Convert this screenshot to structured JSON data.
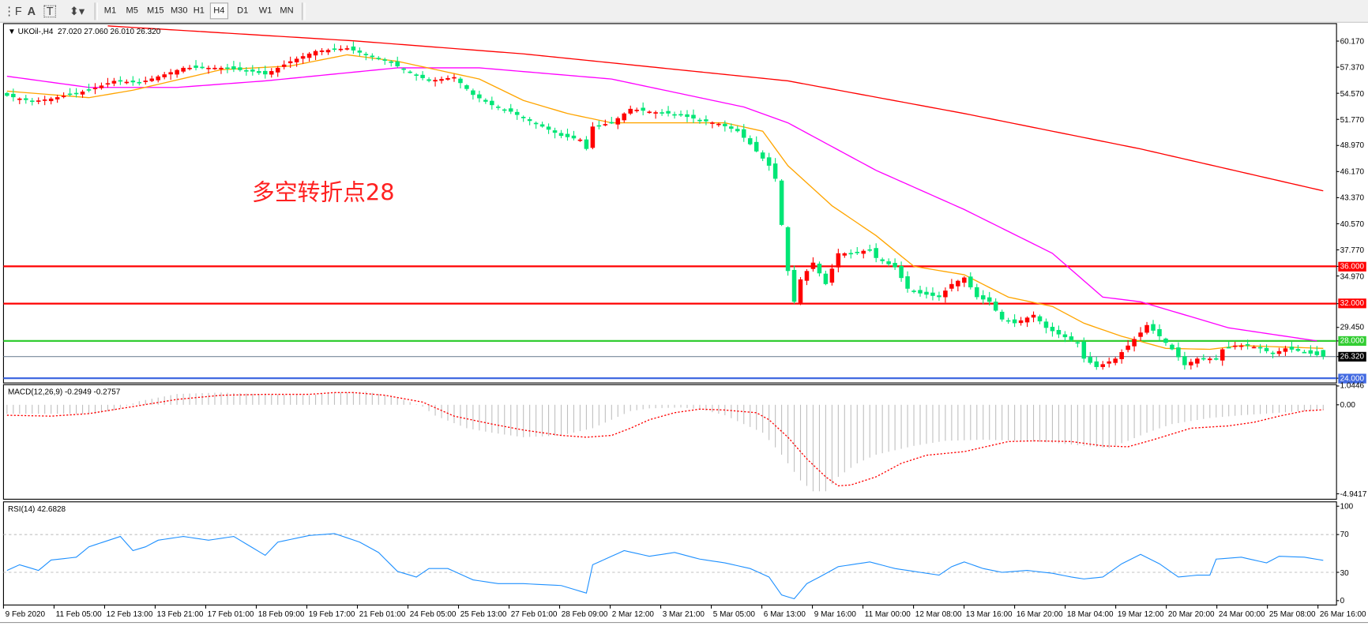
{
  "toolbar": {
    "tools": [
      {
        "name": "period-separator-icon",
        "glyph": "⋮F"
      },
      {
        "name": "text-icon",
        "glyph": "A"
      },
      {
        "name": "text-label-icon",
        "glyph": "T"
      },
      {
        "name": "arrows-icon",
        "glyph": "⬍▾"
      }
    ],
    "timeframes": [
      "M1",
      "M5",
      "M15",
      "M30",
      "H1",
      "H4",
      "D1",
      "W1",
      "MN"
    ],
    "active_timeframe": "H4"
  },
  "chart": {
    "header": "UKOil-,H4  27.020 27.060 26.010 26.320",
    "annotation": "多空转折点28",
    "colors": {
      "up": "#ff0000",
      "down": "#00e676",
      "ma_slow": "#ff0000",
      "ma_mid": "#ff00ff",
      "ma_fast": "#ffa500",
      "macd_hist": "#c0c0c0",
      "macd_signal": "#ff0000",
      "rsi": "#1e90ff"
    }
  },
  "chart_data": [
    {
      "type": "candlestick",
      "symbol": "UKOil-",
      "timeframe": "H4",
      "last_ohlc": {
        "open": 27.02,
        "high": 27.06,
        "low": 26.01,
        "close": 26.32
      },
      "approx_close_by_bar": [
        [
          0,
          54.3
        ],
        [
          4,
          53.7
        ],
        [
          7,
          54.0
        ],
        [
          13,
          54.9
        ],
        [
          17,
          55.9
        ],
        [
          21,
          55.7
        ],
        [
          25,
          56.6
        ],
        [
          28,
          57.3
        ],
        [
          34,
          57.3
        ],
        [
          39,
          56.9
        ],
        [
          41,
          56.6
        ],
        [
          45,
          58.0
        ],
        [
          49,
          59.1
        ],
        [
          54,
          59.4
        ],
        [
          57,
          58.7
        ],
        [
          60,
          58.2
        ],
        [
          63,
          57.1
        ],
        [
          67,
          55.9
        ],
        [
          71,
          56.3
        ],
        [
          74,
          54.4
        ],
        [
          77,
          53.3
        ],
        [
          80,
          52.6
        ],
        [
          82,
          51.9
        ],
        [
          85,
          51.0
        ],
        [
          88,
          50.0
        ],
        [
          91,
          49.6
        ],
        [
          92,
          48.6
        ],
        [
          93,
          51.0
        ],
        [
          96,
          51.4
        ],
        [
          99,
          52.9
        ],
        [
          102,
          52.6
        ],
        [
          105,
          52.4
        ],
        [
          107,
          52.2
        ],
        [
          110,
          51.7
        ],
        [
          113,
          51.3
        ],
        [
          116,
          50.5
        ],
        [
          118,
          49.1
        ],
        [
          121,
          46.8
        ],
        [
          122,
          45.4
        ],
        [
          124,
          35.5
        ],
        [
          125,
          32.2
        ],
        [
          126,
          34.6
        ],
        [
          128,
          36.4
        ],
        [
          130,
          34.1
        ],
        [
          132,
          37.4
        ],
        [
          134,
          37.4
        ],
        [
          137,
          37.8
        ],
        [
          138,
          36.9
        ],
        [
          141,
          35.9
        ],
        [
          143,
          33.6
        ],
        [
          145,
          33.1
        ],
        [
          148,
          32.7
        ],
        [
          150,
          34.1
        ],
        [
          152,
          34.8
        ],
        [
          154,
          32.7
        ],
        [
          156,
          32.2
        ],
        [
          158,
          30.3
        ],
        [
          160,
          29.9
        ],
        [
          163,
          30.8
        ],
        [
          165,
          29.4
        ],
        [
          167,
          28.7
        ],
        [
          170,
          27.8
        ],
        [
          171,
          26.1
        ],
        [
          173,
          25.2
        ],
        [
          176,
          26.1
        ],
        [
          178,
          27.5
        ],
        [
          180,
          28.9
        ],
        [
          181,
          29.7
        ],
        [
          183,
          28.5
        ],
        [
          185,
          27.1
        ],
        [
          187,
          25.4
        ],
        [
          189,
          26.1
        ],
        [
          192,
          26.1
        ],
        [
          193,
          27.1
        ],
        [
          195,
          27.5
        ],
        [
          197,
          27.5
        ],
        [
          199,
          27.2
        ],
        [
          201,
          26.6
        ],
        [
          203,
          27.2
        ],
        [
          206,
          26.8
        ],
        [
          209,
          26.32
        ]
      ],
      "moving_averages": [
        {
          "color": "#ff0000",
          "points": [
            [
              16,
              61.8
            ],
            [
              55,
              60.2
            ],
            [
              82,
              58.8
            ],
            [
              124,
              55.9
            ],
            [
              152,
              52.4
            ],
            [
              180,
              48.6
            ],
            [
              209,
              44.1
            ]
          ]
        },
        {
          "color": "#ff00ff",
          "points": [
            [
              0,
              56.4
            ],
            [
              13,
              55.2
            ],
            [
              27,
              55.2
            ],
            [
              41,
              55.9
            ],
            [
              62,
              57.3
            ],
            [
              75,
              57.3
            ],
            [
              96,
              56.1
            ],
            [
              117,
              53.1
            ],
            [
              124,
              51.4
            ],
            [
              138,
              46.3
            ],
            [
              152,
              42.1
            ],
            [
              166,
              37.4
            ],
            [
              174,
              32.7
            ],
            [
              180,
              32.2
            ],
            [
              194,
              29.4
            ],
            [
              208,
              28.0
            ]
          ]
        },
        {
          "color": "#ffa500",
          "points": [
            [
              0,
              54.8
            ],
            [
              13,
              54.1
            ],
            [
              20,
              54.9
            ],
            [
              34,
              57.1
            ],
            [
              45,
              57.5
            ],
            [
              54,
              58.7
            ],
            [
              62,
              58.0
            ],
            [
              75,
              56.1
            ],
            [
              82,
              53.8
            ],
            [
              89,
              52.4
            ],
            [
              96,
              51.4
            ],
            [
              103,
              51.4
            ],
            [
              114,
              51.4
            ],
            [
              120,
              50.5
            ],
            [
              124,
              46.8
            ],
            [
              131,
              42.5
            ],
            [
              138,
              39.3
            ],
            [
              144,
              36.0
            ],
            [
              152,
              35.1
            ],
            [
              159,
              32.7
            ],
            [
              166,
              31.7
            ],
            [
              171,
              29.9
            ],
            [
              177,
              28.5
            ],
            [
              184,
              27.2
            ],
            [
              191,
              27.1
            ],
            [
              196,
              27.5
            ],
            [
              209,
              27.2
            ]
          ]
        }
      ],
      "horizontal_levels": [
        {
          "value": 36.0,
          "label": "36.000",
          "color": "#ff0000"
        },
        {
          "value": 32.0,
          "label": "32.000",
          "color": "#ff0000"
        },
        {
          "value": 28.0,
          "label": "28.000",
          "color": "#32cd32"
        },
        {
          "value": 26.32,
          "label": "26.320",
          "color": "#778899"
        },
        {
          "value": 24.0,
          "label": "24.000",
          "color": "#4169e1"
        }
      ],
      "y_ticks": [
        "60.170",
        "57.370",
        "54.570",
        "51.770",
        "48.970",
        "46.170",
        "43.370",
        "40.570",
        "37.770",
        "34.970",
        "29.450"
      ],
      "ylim": [
        23.5,
        62.5
      ]
    },
    {
      "type": "bar+line",
      "title": "MACD(12,26,9) -0.2949 -0.2757",
      "y_ticks": [
        "1.0446",
        "0.00",
        "-4.9417"
      ],
      "ylim": [
        -4.9417,
        1.0446
      ],
      "histogram_by_bar": [
        [
          0,
          -0.5
        ],
        [
          14,
          -0.5
        ],
        [
          17,
          -0.3
        ],
        [
          21,
          0.2
        ],
        [
          27,
          0.6
        ],
        [
          34,
          0.68
        ],
        [
          41,
          0.58
        ],
        [
          48,
          0.53
        ],
        [
          52,
          0.68
        ],
        [
          57,
          0.73
        ],
        [
          62,
          0.4
        ],
        [
          66,
          -0.1
        ],
        [
          68,
          -0.6
        ],
        [
          73,
          -1.3
        ],
        [
          77,
          -1.55
        ],
        [
          82,
          -1.8
        ],
        [
          88,
          -1.7
        ],
        [
          93,
          -1.3
        ],
        [
          96,
          -0.83
        ],
        [
          99,
          -0.35
        ],
        [
          102,
          -0.2
        ],
        [
          107,
          -0.15
        ],
        [
          110,
          -0.24
        ],
        [
          114,
          -0.58
        ],
        [
          117,
          -1.07
        ],
        [
          120,
          -1.55
        ],
        [
          123,
          -2.77
        ],
        [
          126,
          -4.2
        ],
        [
          128,
          -4.8
        ],
        [
          130,
          -4.8
        ],
        [
          132,
          -4.0
        ],
        [
          135,
          -3.25
        ],
        [
          138,
          -2.77
        ],
        [
          144,
          -2.28
        ],
        [
          149,
          -2.0
        ],
        [
          155,
          -1.94
        ],
        [
          160,
          -1.99
        ],
        [
          166,
          -2.1
        ],
        [
          171,
          -2.28
        ],
        [
          175,
          -2.4
        ],
        [
          178,
          -2.0
        ],
        [
          181,
          -1.55
        ],
        [
          185,
          -1.07
        ],
        [
          191,
          -0.73
        ],
        [
          196,
          -0.58
        ],
        [
          202,
          -0.44
        ],
        [
          206,
          -0.34
        ],
        [
          209,
          -0.2949
        ]
      ],
      "signal_by_bar": [
        [
          0,
          -0.58
        ],
        [
          7,
          -0.63
        ],
        [
          13,
          -0.49
        ],
        [
          20,
          -0.1
        ],
        [
          27,
          0.3
        ],
        [
          34,
          0.53
        ],
        [
          41,
          0.58
        ],
        [
          48,
          0.58
        ],
        [
          52,
          0.68
        ],
        [
          55,
          0.68
        ],
        [
          60,
          0.53
        ],
        [
          66,
          0.15
        ],
        [
          71,
          -0.63
        ],
        [
          77,
          -1.07
        ],
        [
          82,
          -1.4
        ],
        [
          88,
          -1.7
        ],
        [
          92,
          -1.8
        ],
        [
          96,
          -1.7
        ],
        [
          99,
          -1.3
        ],
        [
          102,
          -0.83
        ],
        [
          106,
          -0.44
        ],
        [
          110,
          -0.24
        ],
        [
          114,
          -0.29
        ],
        [
          119,
          -0.44
        ],
        [
          121,
          -0.83
        ],
        [
          124,
          -1.8
        ],
        [
          127,
          -3.0
        ],
        [
          130,
          -4.0
        ],
        [
          132,
          -4.5
        ],
        [
          134,
          -4.45
        ],
        [
          138,
          -4.0
        ],
        [
          142,
          -3.25
        ],
        [
          146,
          -2.8
        ],
        [
          152,
          -2.6
        ],
        [
          159,
          -2.04
        ],
        [
          163,
          -2.0
        ],
        [
          169,
          -2.04
        ],
        [
          174,
          -2.28
        ],
        [
          178,
          -2.33
        ],
        [
          182,
          -1.94
        ],
        [
          188,
          -1.3
        ],
        [
          194,
          -1.17
        ],
        [
          198,
          -0.97
        ],
        [
          202,
          -0.63
        ],
        [
          206,
          -0.34
        ],
        [
          209,
          -0.2757
        ]
      ]
    },
    {
      "type": "line",
      "title": "RSI(14) 42.6828",
      "y_ticks": [
        "100",
        "70",
        "30",
        "0"
      ],
      "levels": [
        70,
        30
      ],
      "ylim": [
        0,
        100
      ],
      "values_by_bar": [
        [
          0,
          32
        ],
        [
          2,
          38
        ],
        [
          5,
          32
        ],
        [
          7,
          43
        ],
        [
          11,
          46
        ],
        [
          13,
          57
        ],
        [
          18,
          68
        ],
        [
          20,
          53
        ],
        [
          22,
          57
        ],
        [
          24,
          64
        ],
        [
          28,
          68
        ],
        [
          32,
          64
        ],
        [
          36,
          68
        ],
        [
          41,
          48
        ],
        [
          43,
          62
        ],
        [
          48,
          69
        ],
        [
          52,
          71
        ],
        [
          56,
          62
        ],
        [
          59,
          51
        ],
        [
          62,
          31
        ],
        [
          65,
          25
        ],
        [
          67,
          34
        ],
        [
          70,
          34
        ],
        [
          74,
          22
        ],
        [
          78,
          18
        ],
        [
          82,
          18
        ],
        [
          88,
          16
        ],
        [
          92,
          8
        ],
        [
          93,
          38
        ],
        [
          98,
          53
        ],
        [
          102,
          47
        ],
        [
          106,
          51
        ],
        [
          110,
          44
        ],
        [
          114,
          40
        ],
        [
          118,
          34
        ],
        [
          121,
          25
        ],
        [
          123,
          6
        ],
        [
          125,
          2
        ],
        [
          127,
          18
        ],
        [
          129,
          25
        ],
        [
          132,
          36
        ],
        [
          137,
          41
        ],
        [
          141,
          34
        ],
        [
          145,
          30
        ],
        [
          148,
          27
        ],
        [
          150,
          36
        ],
        [
          152,
          41
        ],
        [
          155,
          34
        ],
        [
          158,
          30
        ],
        [
          162,
          32
        ],
        [
          166,
          29
        ],
        [
          169,
          25
        ],
        [
          171,
          23
        ],
        [
          174,
          25
        ],
        [
          177,
          39
        ],
        [
          180,
          49
        ],
        [
          183,
          39
        ],
        [
          186,
          25
        ],
        [
          189,
          27
        ],
        [
          191,
          27
        ],
        [
          192,
          44
        ],
        [
          196,
          46
        ],
        [
          200,
          40
        ],
        [
          202,
          47
        ],
        [
          206,
          46
        ],
        [
          209,
          42.68
        ]
      ]
    }
  ],
  "time_axis": [
    "9 Feb 2020",
    "11 Feb 05:00",
    "12 Feb 13:00",
    "13 Feb 21:00",
    "17 Feb 01:00",
    "18 Feb 09:00",
    "19 Feb 17:00",
    "21 Feb 01:00",
    "24 Feb 05:00",
    "25 Feb 13:00",
    "27 Feb 01:00",
    "28 Feb 09:00",
    "2 Mar 12:00",
    "3 Mar 21:00",
    "5 Mar 05:00",
    "6 Mar 13:00",
    "9 Mar 16:00",
    "11 Mar 00:00",
    "12 Mar 08:00",
    "13 Mar 16:00",
    "16 Mar 20:00",
    "18 Mar 04:00",
    "19 Mar 12:00",
    "20 Mar 20:00",
    "24 Mar 00:00",
    "25 Mar 08:00",
    "26 Mar 16:00"
  ]
}
